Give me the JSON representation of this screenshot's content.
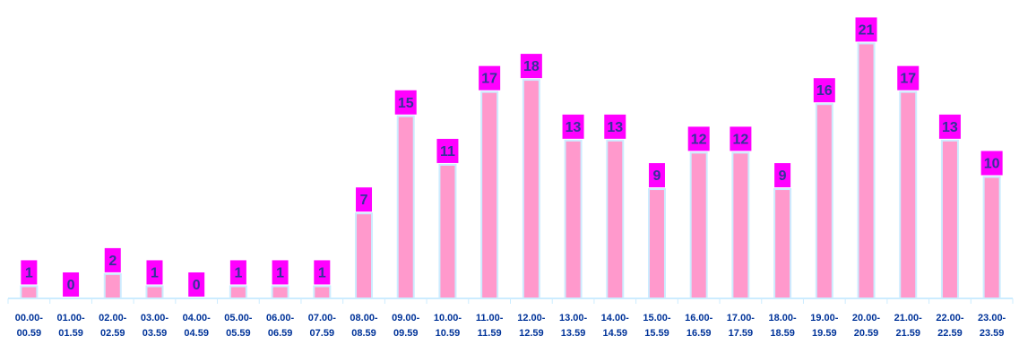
{
  "chart_data": {
    "type": "bar",
    "categories": [
      "00.00-00.59",
      "01.00-01.59",
      "02.00-02.59",
      "03.00-03.59",
      "04.00-04.59",
      "05.00-05.59",
      "06.00-06.59",
      "07.00-07.59",
      "08.00-08.59",
      "09.00-09.59",
      "10.00-10.59",
      "11.00-11.59",
      "12.00-12.59",
      "13.00-13.59",
      "14.00-14.59",
      "15.00-15.59",
      "16.00-16.59",
      "17.00-17.59",
      "18.00-18.59",
      "19.00-19.59",
      "20.00-20.59",
      "21.00-21.59",
      "22.00-22.59",
      "23.00-23.59"
    ],
    "values": [
      1,
      0,
      2,
      1,
      0,
      1,
      1,
      1,
      7,
      15,
      11,
      17,
      18,
      13,
      13,
      9,
      12,
      12,
      9,
      16,
      21,
      17,
      13,
      10
    ],
    "ylim": [
      0,
      22
    ],
    "grid": false,
    "legend": "none",
    "colors": {
      "bar_fill": "#ff99cc",
      "bar_border": "#ccecff",
      "label_bg": "#ff00ff",
      "label_text": "#333399",
      "tick_text": "#003399",
      "axis": "#ccecff"
    }
  }
}
